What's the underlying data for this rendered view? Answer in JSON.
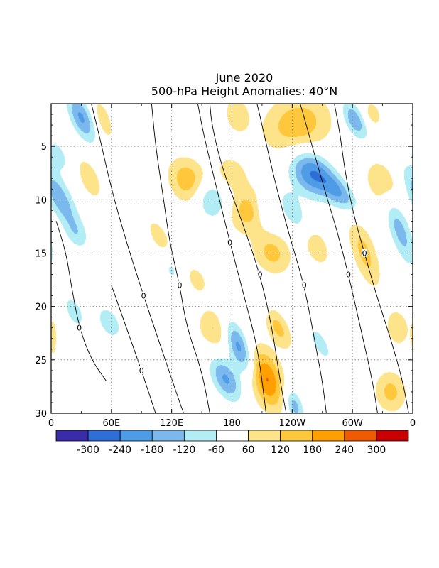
{
  "chart_data": {
    "type": "heatmap",
    "title": "June 2020",
    "subtitle": "500-hPa Height Anomalies: 40°N",
    "xlabel": "",
    "ylabel": "",
    "x_tick_labels": [
      "0",
      "60E",
      "120E",
      "180",
      "120W",
      "60W",
      "0"
    ],
    "x_ticks_deg": [
      0,
      60,
      120,
      180,
      240,
      300,
      360
    ],
    "y_tick_labels": [
      "5",
      "10",
      "15",
      "20",
      "25",
      "30"
    ],
    "y_ticks": [
      5,
      10,
      15,
      20,
      25,
      30
    ],
    "xlim": [
      0,
      360
    ],
    "ylim": [
      1,
      30
    ],
    "y_direction": "day of month increasing downward",
    "grid": true,
    "contour_label": "0",
    "colorbar": {
      "labels": [
        "-300",
        "-240",
        "-180",
        "-120",
        "-60",
        "60",
        "120",
        "180",
        "240",
        "300"
      ],
      "levels": [
        -300,
        -240,
        -180,
        -120,
        -60,
        60,
        120,
        180,
        240,
        300
      ],
      "colors": [
        "#3a2ca8",
        "#2d6fd6",
        "#4e9be6",
        "#7ab8ee",
        "#b2ecf4",
        "#ffffff",
        "#fde38a",
        "#ffc83c",
        "#ffa000",
        "#f05a00",
        "#c80000"
      ]
    },
    "blobs": [
      {
        "lon": 30,
        "day": 2.3,
        "a": 10,
        "b": 2.4,
        "rot": -25,
        "amp": -190
      },
      {
        "lon": 7,
        "day": 5.8,
        "a": 10,
        "b": 2.0,
        "rot": -30,
        "amp": -80
      },
      {
        "lon": 8,
        "day": 9.8,
        "a": 11,
        "b": 3.2,
        "rot": -30,
        "amp": -170
      },
      {
        "lon": 25,
        "day": 13.2,
        "a": 10,
        "b": 1.6,
        "rot": -30,
        "amp": -80
      },
      {
        "lon": 23,
        "day": 20.5,
        "a": 9,
        "b": 1.8,
        "rot": -25,
        "amp": -90
      },
      {
        "lon": 58,
        "day": 21.5,
        "a": 12,
        "b": 2.0,
        "rot": -30,
        "amp": -90
      },
      {
        "lon": 120,
        "day": 16.5,
        "a": 10,
        "b": 1.8,
        "rot": -20,
        "amp": -70
      },
      {
        "lon": 156,
        "day": 9.8,
        "a": 16,
        "b": 2.2,
        "rot": -40,
        "amp": -200
      },
      {
        "lon": 187,
        "day": 23.8,
        "a": 10,
        "b": 3.0,
        "rot": -25,
        "amp": -220
      },
      {
        "lon": 174,
        "day": 26.8,
        "a": 12,
        "b": 2.2,
        "rot": -30,
        "amp": -190
      },
      {
        "lon": 258,
        "day": 7.5,
        "a": 18,
        "b": 2.5,
        "rot": -40,
        "amp": -230
      },
      {
        "lon": 286,
        "day": 9.3,
        "a": 11,
        "b": 2.5,
        "rot": -45,
        "amp": -170
      },
      {
        "lon": 240,
        "day": 11.0,
        "a": 10,
        "b": 2.0,
        "rot": -30,
        "amp": -110
      },
      {
        "lon": 213,
        "day": 11.0,
        "a": 9,
        "b": 1.6,
        "rot": -25,
        "amp": -90
      },
      {
        "lon": 302,
        "day": 2.5,
        "a": 10,
        "b": 2.0,
        "rot": -30,
        "amp": -180
      },
      {
        "lon": 347,
        "day": 12.8,
        "a": 10,
        "b": 3.5,
        "rot": -20,
        "amp": -150
      },
      {
        "lon": 268,
        "day": 23.5,
        "a": 8,
        "b": 2.0,
        "rot": -30,
        "amp": -90
      },
      {
        "lon": 242,
        "day": 29.3,
        "a": 8,
        "b": 1.8,
        "rot": -20,
        "amp": -160
      },
      {
        "lon": 205,
        "day": 19.5,
        "a": 8,
        "b": 1.5,
        "rot": -30,
        "amp": -70
      },
      {
        "lon": 2,
        "day": 23.0,
        "a": 4,
        "b": 2.0,
        "rot": 0,
        "amp": 90
      },
      {
        "lon": 52,
        "day": 2.5,
        "a": 8,
        "b": 2.2,
        "rot": -20,
        "amp": 100
      },
      {
        "lon": 38,
        "day": 8.0,
        "a": 10,
        "b": 2.2,
        "rot": -25,
        "amp": 110
      },
      {
        "lon": 108,
        "day": 13.5,
        "a": 9,
        "b": 2.0,
        "rot": -30,
        "amp": 100
      },
      {
        "lon": 140,
        "day": 8.5,
        "a": 18,
        "b": 2.5,
        "rot": -40,
        "amp": 215
      },
      {
        "lon": 145,
        "day": 17.5,
        "a": 10,
        "b": 1.6,
        "rot": -30,
        "amp": 90
      },
      {
        "lon": 163,
        "day": 22.0,
        "a": 16,
        "b": 2.0,
        "rot": -25,
        "amp": 130
      },
      {
        "lon": 195,
        "day": 11.0,
        "a": 22,
        "b": 2.0,
        "rot": -45,
        "amp": 150
      },
      {
        "lon": 220,
        "day": 15.0,
        "a": 18,
        "b": 2.2,
        "rot": -40,
        "amp": 140
      },
      {
        "lon": 180,
        "day": 7.5,
        "a": 14,
        "b": 1.8,
        "rot": -40,
        "amp": 100
      },
      {
        "lon": 245,
        "day": 3.0,
        "a": 35,
        "b": 2.8,
        "rot": -20,
        "amp": 165
      },
      {
        "lon": 185,
        "day": 2.0,
        "a": 12,
        "b": 1.8,
        "rot": -10,
        "amp": 110
      },
      {
        "lon": 226,
        "day": 22.0,
        "a": 10,
        "b": 2.2,
        "rot": -30,
        "amp": 140
      },
      {
        "lon": 214,
        "day": 26.8,
        "a": 16,
        "b": 3.0,
        "rot": -20,
        "amp": 250
      },
      {
        "lon": 265,
        "day": 14.5,
        "a": 12,
        "b": 2.0,
        "rot": -25,
        "amp": 100
      },
      {
        "lon": 330,
        "day": 8.5,
        "a": 16,
        "b": 2.5,
        "rot": -25,
        "amp": 120
      },
      {
        "lon": 312,
        "day": 15.0,
        "a": 12,
        "b": 3.5,
        "rot": -20,
        "amp": 140
      },
      {
        "lon": 345,
        "day": 22.0,
        "a": 12,
        "b": 1.8,
        "rot": -10,
        "amp": 110
      },
      {
        "lon": 338,
        "day": 28.0,
        "a": 16,
        "b": 2.0,
        "rot": -10,
        "amp": 140
      },
      {
        "lon": 320,
        "day": 2.0,
        "a": 10,
        "b": 1.5,
        "rot": -20,
        "amp": 90
      }
    ],
    "zero_contours": [
      [
        [
          40,
          1
        ],
        [
          48,
          4
        ],
        [
          60,
          9
        ],
        [
          75,
          14
        ],
        [
          92,
          19
        ],
        [
          110,
          24
        ],
        [
          128,
          29
        ],
        [
          132,
          30
        ]
      ],
      [
        [
          100,
          1
        ],
        [
          104,
          5
        ],
        [
          112,
          10
        ],
        [
          118,
          14
        ],
        [
          128,
          18
        ],
        [
          135,
          22
        ],
        [
          150,
          26
        ],
        [
          158,
          30
        ]
      ],
      [
        [
          146,
          1
        ],
        [
          152,
          4
        ],
        [
          165,
          9
        ],
        [
          178,
          14
        ],
        [
          192,
          19
        ],
        [
          206,
          24
        ],
        [
          214,
          30
        ]
      ],
      [
        [
          158,
          1
        ],
        [
          160,
          3
        ],
        [
          170,
          7
        ],
        [
          190,
          12
        ],
        [
          208,
          17
        ],
        [
          220,
          22
        ],
        [
          228,
          27
        ],
        [
          234,
          30
        ]
      ],
      [
        [
          205,
          1
        ],
        [
          210,
          3
        ],
        [
          222,
          8
        ],
        [
          236,
          13
        ],
        [
          252,
          18
        ],
        [
          262,
          23
        ],
        [
          270,
          27
        ],
        [
          274,
          30
        ]
      ],
      [
        [
          248,
          1
        ],
        [
          260,
          5
        ],
        [
          272,
          9
        ],
        [
          285,
          13
        ],
        [
          296,
          17
        ],
        [
          308,
          22
        ],
        [
          320,
          27
        ],
        [
          325,
          30
        ]
      ],
      [
        [
          282,
          1
        ],
        [
          288,
          4
        ],
        [
          292,
          7
        ],
        [
          300,
          11
        ],
        [
          312,
          15
        ],
        [
          324,
          19
        ],
        [
          338,
          23
        ],
        [
          350,
          27
        ],
        [
          356,
          30
        ]
      ],
      [
        [
          5,
          12
        ],
        [
          15,
          15
        ],
        [
          20,
          18
        ],
        [
          28,
          22
        ],
        [
          40,
          25
        ],
        [
          55,
          27
        ]
      ],
      [
        [
          60,
          18
        ],
        [
          75,
          22
        ],
        [
          90,
          26
        ],
        [
          104,
          30
        ]
      ]
    ]
  }
}
